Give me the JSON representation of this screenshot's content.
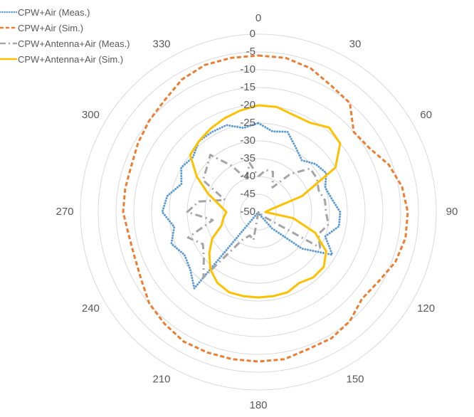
{
  "chart_data": {
    "type": "radar",
    "angle_labels": [
      "0",
      "30",
      "60",
      "90",
      "120",
      "150",
      "180",
      "210",
      "240",
      "270",
      "300",
      "330"
    ],
    "r_ticks": [
      "0",
      "-5",
      "-10",
      "-15",
      "-20",
      "-25",
      "-30",
      "-35",
      "-40",
      "-45",
      "-50"
    ],
    "rlim": [
      -50,
      0
    ],
    "legend_position": "top-left",
    "grid": true,
    "series": [
      {
        "name": "CPW+Air (Meas.)",
        "color": "#5B9BD5",
        "style": "dotted",
        "points": [
          [
            0,
            -25
          ],
          [
            10,
            -27
          ],
          [
            20,
            -26
          ],
          [
            30,
            -29
          ],
          [
            40,
            -31
          ],
          [
            50,
            -29
          ],
          [
            60,
            -28
          ],
          [
            70,
            -30
          ],
          [
            80,
            -29
          ],
          [
            90,
            -27
          ],
          [
            100,
            -27
          ],
          [
            110,
            -30
          ],
          [
            120,
            -26
          ],
          [
            130,
            -34
          ],
          [
            140,
            -44
          ],
          [
            150,
            -49
          ],
          [
            160,
            -50
          ],
          [
            170,
            -50
          ],
          [
            180,
            -50
          ],
          [
            190,
            -50
          ],
          [
            200,
            -50
          ],
          [
            210,
            -50
          ],
          [
            220,
            -22
          ],
          [
            230,
            -25
          ],
          [
            240,
            -26
          ],
          [
            250,
            -24
          ],
          [
            260,
            -26
          ],
          [
            270,
            -23
          ],
          [
            280,
            -24
          ],
          [
            290,
            -27
          ],
          [
            300,
            -25
          ],
          [
            310,
            -26
          ],
          [
            320,
            -24
          ],
          [
            330,
            -24
          ],
          [
            340,
            -24
          ],
          [
            350,
            -26
          ],
          [
            360,
            -25
          ]
        ]
      },
      {
        "name": "CPW+Air (Sim.)",
        "color": "#ED7D31",
        "style": "dashed",
        "points": [
          [
            0,
            -6
          ],
          [
            10,
            -6
          ],
          [
            20,
            -7
          ],
          [
            30,
            -9
          ],
          [
            40,
            -10
          ],
          [
            50,
            -15
          ],
          [
            60,
            -14
          ],
          [
            70,
            -11
          ],
          [
            80,
            -9
          ],
          [
            90,
            -8
          ],
          [
            100,
            -8
          ],
          [
            110,
            -9
          ],
          [
            120,
            -11
          ],
          [
            130,
            -12
          ],
          [
            140,
            -10
          ],
          [
            150,
            -9
          ],
          [
            160,
            -9
          ],
          [
            170,
            -8
          ],
          [
            180,
            -8
          ],
          [
            190,
            -8
          ],
          [
            200,
            -8
          ],
          [
            210,
            -8
          ],
          [
            220,
            -9
          ],
          [
            230,
            -10
          ],
          [
            240,
            -12
          ],
          [
            250,
            -13
          ],
          [
            260,
            -13
          ],
          [
            270,
            -12
          ],
          [
            280,
            -12
          ],
          [
            290,
            -12
          ],
          [
            300,
            -11
          ],
          [
            310,
            -10
          ],
          [
            320,
            -9
          ],
          [
            330,
            -7
          ],
          [
            340,
            -6
          ],
          [
            350,
            -6
          ],
          [
            360,
            -6
          ]
        ]
      },
      {
        "name": "CPW+Antenna+Air (Meas.)",
        "color": "#A5A5A5",
        "style": "dash-dot",
        "points": [
          [
            0,
            -40
          ],
          [
            10,
            -38
          ],
          [
            20,
            -38
          ],
          [
            30,
            -42
          ],
          [
            40,
            -36
          ],
          [
            50,
            -31
          ],
          [
            60,
            -31
          ],
          [
            70,
            -32
          ],
          [
            80,
            -31
          ],
          [
            90,
            -31
          ],
          [
            100,
            -30
          ],
          [
            110,
            -32
          ],
          [
            120,
            -30
          ],
          [
            130,
            -48
          ],
          [
            140,
            -50
          ],
          [
            150,
            -50
          ],
          [
            160,
            -50
          ],
          [
            170,
            -50
          ],
          [
            180,
            -50
          ],
          [
            190,
            -42
          ],
          [
            200,
            -43
          ],
          [
            210,
            -41
          ],
          [
            220,
            -26
          ],
          [
            230,
            -30
          ],
          [
            240,
            -32
          ],
          [
            250,
            -29
          ],
          [
            260,
            -37
          ],
          [
            270,
            -30
          ],
          [
            280,
            -33
          ],
          [
            290,
            -40
          ],
          [
            300,
            -32
          ],
          [
            310,
            -31
          ],
          [
            320,
            -29
          ],
          [
            330,
            -35
          ],
          [
            340,
            -40
          ],
          [
            350,
            -36
          ],
          [
            360,
            -40
          ]
        ]
      },
      {
        "name": "CPW+Antenna+Air (Sim.)",
        "color": "#FFC000",
        "style": "solid",
        "points": [
          [
            0,
            -20
          ],
          [
            10,
            -20
          ],
          [
            20,
            -21
          ],
          [
            30,
            -21
          ],
          [
            40,
            -19
          ],
          [
            50,
            -20
          ],
          [
            60,
            -25
          ],
          [
            70,
            -37
          ],
          [
            80,
            -47
          ],
          [
            90,
            -48
          ],
          [
            100,
            -40
          ],
          [
            110,
            -33
          ],
          [
            120,
            -28
          ],
          [
            130,
            -26
          ],
          [
            140,
            -26
          ],
          [
            150,
            -27
          ],
          [
            160,
            -26
          ],
          [
            170,
            -26
          ],
          [
            180,
            -26
          ],
          [
            190,
            -26
          ],
          [
            200,
            -26
          ],
          [
            210,
            -27
          ],
          [
            220,
            -29
          ],
          [
            230,
            -32
          ],
          [
            240,
            -35
          ],
          [
            250,
            -39
          ],
          [
            260,
            -40
          ],
          [
            270,
            -41
          ],
          [
            280,
            -39
          ],
          [
            290,
            -35
          ],
          [
            300,
            -30
          ],
          [
            310,
            -25
          ],
          [
            320,
            -24
          ],
          [
            330,
            -23
          ],
          [
            340,
            -22
          ],
          [
            350,
            -21
          ],
          [
            360,
            -20
          ]
        ]
      }
    ]
  }
}
